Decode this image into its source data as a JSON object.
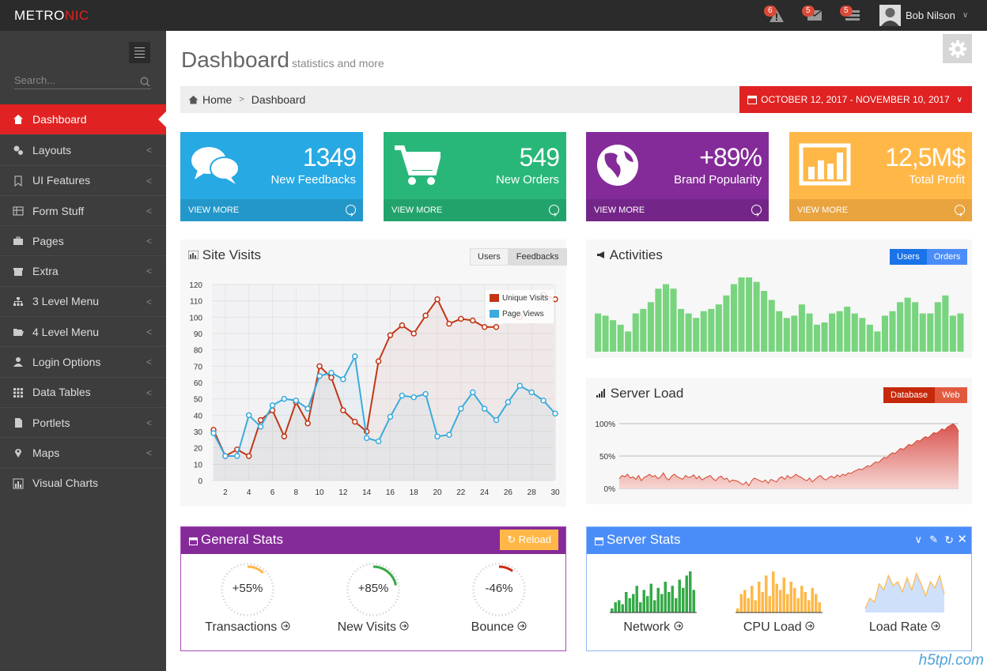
{
  "brand": {
    "left": "METRO",
    "right": "NIC"
  },
  "topbar": {
    "notif_count": "6",
    "inbox_count": "5",
    "tasks_count": "5",
    "user_name": "Bob Nilson"
  },
  "sidebar": {
    "search_placeholder": "Search...",
    "items": [
      {
        "label": "Dashboard",
        "icon": "home-icon"
      },
      {
        "label": "Layouts",
        "icon": "cogs-icon"
      },
      {
        "label": "UI Features",
        "icon": "bookmark-icon"
      },
      {
        "label": "Form Stuff",
        "icon": "table-icon"
      },
      {
        "label": "Pages",
        "icon": "briefcase-icon"
      },
      {
        "label": "Extra",
        "icon": "gift-icon"
      },
      {
        "label": "3 Level Menu",
        "icon": "sitemap-icon"
      },
      {
        "label": "4 Level Menu",
        "icon": "folder-open-icon"
      },
      {
        "label": "Login Options",
        "icon": "user-icon"
      },
      {
        "label": "Data Tables",
        "icon": "th-icon"
      },
      {
        "label": "Portlets",
        "icon": "file-icon"
      },
      {
        "label": "Maps",
        "icon": "map-marker-icon"
      },
      {
        "label": "Visual Charts",
        "icon": "bar-chart-icon"
      }
    ]
  },
  "header": {
    "title": "Dashboard",
    "subtitle": "statistics and more"
  },
  "breadcrumb": {
    "home": "Home",
    "current": "Dashboard",
    "daterange": "OCTOBER 12, 2017 - NOVEMBER 10, 2017"
  },
  "tiles": [
    {
      "value": "1349",
      "label": "New Feedbacks",
      "more": "VIEW MORE",
      "color": "#27a9e3"
    },
    {
      "value": "549",
      "label": "New Orders",
      "more": "VIEW MORE",
      "color": "#28b779"
    },
    {
      "value": "+89%",
      "label": "Brand Popularity",
      "more": "VIEW MORE",
      "color": "#852b99"
    },
    {
      "value": "12,5M$",
      "label": "Total Profit",
      "more": "VIEW MORE",
      "color": "#ffb848"
    }
  ],
  "site_visits": {
    "title": "Site Visits",
    "tab_users": "Users",
    "tab_feedbacks": "Feedbacks"
  },
  "activities": {
    "title": "Activities",
    "tab_users": "Users",
    "tab_orders": "Orders"
  },
  "server_load": {
    "title": "Server Load",
    "tab_database": "Database",
    "tab_web": "Web"
  },
  "general_stats": {
    "title": "General Stats",
    "reload": "Reload",
    "gauges": [
      {
        "value": "+55%",
        "label": "Transactions",
        "pct": 0.12,
        "color": "#ffb848"
      },
      {
        "value": "+85%",
        "label": "New Visits",
        "pct": 0.22,
        "color": "#35aa47"
      },
      {
        "value": "-46%",
        "label": "Bounce",
        "pct": 0.1,
        "color": "#d12610"
      }
    ]
  },
  "server_stats": {
    "title": "Server Stats",
    "items": [
      {
        "label": "Network",
        "color": "#35aa47"
      },
      {
        "label": "CPU Load",
        "color": "#ffb848"
      },
      {
        "label": "Load Rate",
        "color": "#4b8df8"
      }
    ]
  },
  "watermark": "h5tpl.com",
  "chart_data": [
    {
      "type": "line",
      "title": "Site Visits",
      "x": [
        1,
        2,
        3,
        4,
        5,
        6,
        7,
        8,
        9,
        10,
        11,
        12,
        13,
        14,
        15,
        16,
        17,
        18,
        19,
        20,
        21,
        22,
        23,
        24,
        25,
        26,
        27,
        28,
        29,
        30
      ],
      "xticks": [
        2,
        4,
        6,
        8,
        10,
        12,
        14,
        16,
        18,
        20,
        22,
        24,
        26,
        28,
        30
      ],
      "ylim": [
        0,
        120
      ],
      "yticks": [
        0,
        10,
        20,
        30,
        40,
        50,
        60,
        70,
        80,
        90,
        100,
        110,
        120
      ],
      "legend": "top-right",
      "series": [
        {
          "name": "Unique Visits",
          "color": "#c23616",
          "values": [
            31,
            15,
            19,
            15,
            37,
            43,
            27,
            48,
            35,
            70,
            63,
            43,
            36,
            30,
            73,
            89,
            95,
            90,
            101,
            111,
            96,
            99,
            98,
            94,
            94,
            null,
            100,
            null,
            114,
            111
          ]
        },
        {
          "name": "Page Views",
          "color": "#3aabdc",
          "values": [
            29,
            15,
            15,
            40,
            33,
            46,
            50,
            49,
            44,
            64,
            66,
            62,
            76,
            26,
            24,
            39,
            52,
            51,
            53,
            27,
            28,
            44,
            54,
            44,
            37,
            48,
            58,
            54,
            49,
            41
          ]
        }
      ]
    },
    {
      "type": "bar",
      "title": "Activities",
      "values": [
        17,
        16,
        14,
        12,
        9,
        17,
        19,
        22,
        28,
        30,
        28,
        19,
        17,
        15,
        18,
        19,
        21,
        25,
        30,
        33,
        33,
        31,
        27,
        23,
        18,
        15,
        16,
        21,
        17,
        12,
        13,
        17,
        18,
        20,
        17,
        15,
        12,
        9,
        16,
        18,
        22,
        24,
        22,
        17,
        17,
        22,
        25,
        16,
        17
      ]
    },
    {
      "type": "area",
      "title": "Server Load",
      "yticks": [
        "0%",
        "50%",
        "100%"
      ],
      "ylim": [
        0,
        100
      ],
      "values": [
        15,
        20,
        18,
        22,
        16,
        18,
        14,
        20,
        12,
        17,
        19,
        22,
        18,
        20,
        15,
        18,
        24,
        16,
        13,
        19,
        22,
        18,
        16,
        14,
        20,
        17,
        18,
        21,
        15,
        19,
        13,
        16,
        18,
        20,
        15,
        12,
        17,
        19,
        14,
        16,
        10,
        13,
        12,
        11,
        8,
        6,
        10,
        4,
        12,
        16,
        14,
        12,
        10,
        13,
        8,
        14,
        12,
        10,
        16,
        18,
        14,
        20,
        16,
        18,
        22,
        19,
        17,
        14,
        12,
        16,
        10,
        14,
        18,
        20,
        15,
        13,
        17,
        19,
        16,
        21,
        18,
        22,
        20,
        24,
        23,
        26,
        28,
        30,
        29,
        32,
        35,
        34,
        38,
        41,
        40,
        44,
        48,
        47,
        52,
        55,
        54,
        58,
        62,
        60,
        64,
        68,
        66,
        70,
        74,
        73,
        77,
        80,
        78,
        82,
        86,
        85,
        88,
        92,
        90,
        95,
        97,
        100,
        96,
        88
      ]
    }
  ]
}
